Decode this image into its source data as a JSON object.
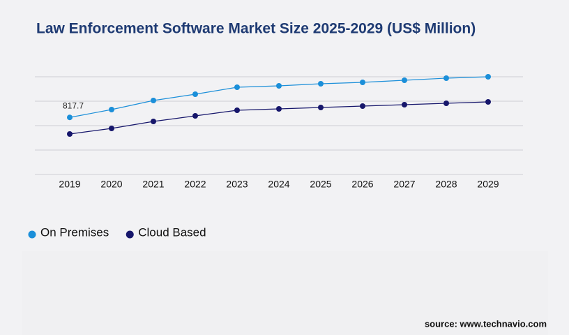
{
  "chart_data": {
    "type": "line",
    "title": "Law Enforcement Software Market Size 2025-2029 (US$ Million)",
    "categories": [
      "2019",
      "2020",
      "2021",
      "2022",
      "2023",
      "2024",
      "2025",
      "2026",
      "2027",
      "2028",
      "2029"
    ],
    "series": [
      {
        "name": "On Premises",
        "color": "#1b8fd9",
        "values": [
          817.7,
          930,
          1060,
          1150,
          1250,
          1270,
          1300,
          1320,
          1350,
          1380,
          1400
        ],
        "value_labels": [
          "817.7",
          null,
          null,
          null,
          null,
          null,
          null,
          null,
          null,
          null,
          null
        ]
      },
      {
        "name": "Cloud Based",
        "color": "#16166b",
        "values": [
          580,
          660,
          760,
          840,
          920,
          940,
          960,
          980,
          1000,
          1020,
          1040
        ]
      }
    ],
    "ylim": [
      0,
      1400
    ],
    "yticks": [
      0,
      350,
      700,
      1050,
      1400
    ],
    "grid": true,
    "show_y_tick_labels": false,
    "legend": "bottom-left",
    "source": "source: www.technavio.com"
  }
}
